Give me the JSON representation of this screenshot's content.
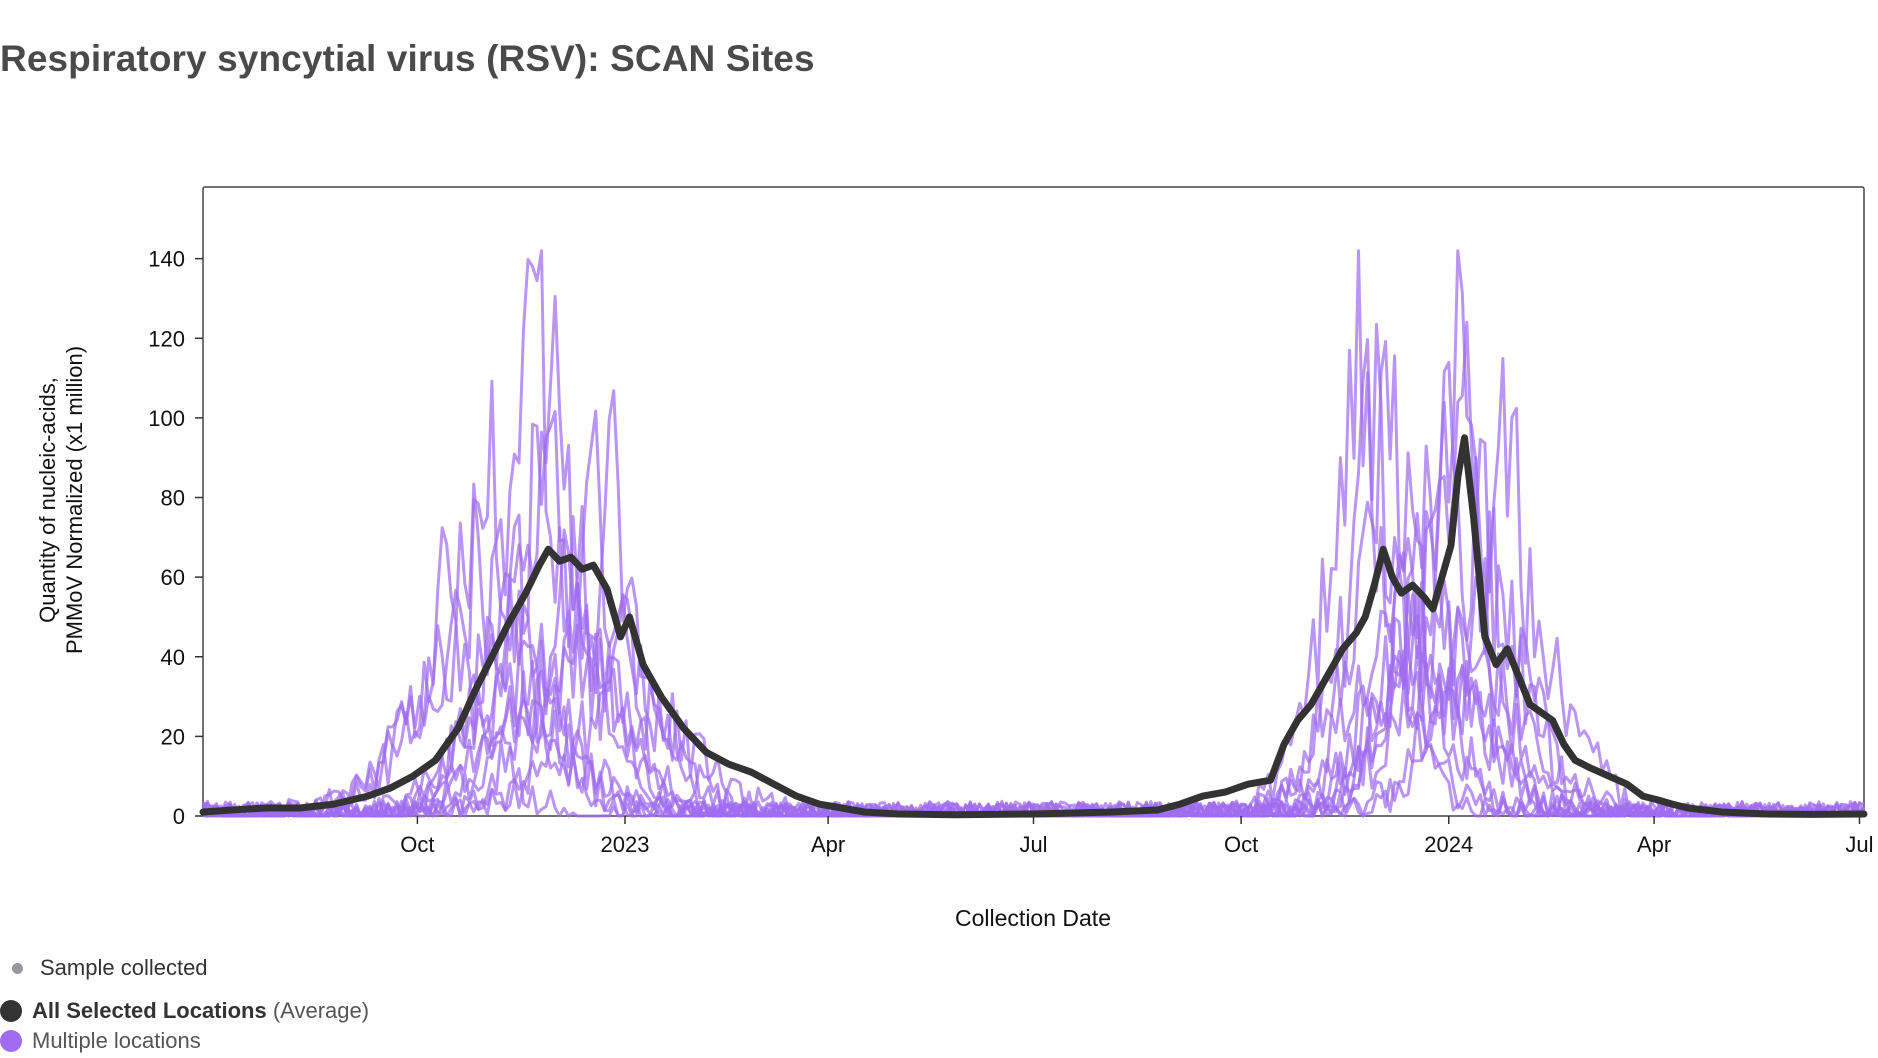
{
  "title": "Respiratory syncytial virus (RSV): SCAN Sites",
  "colors": {
    "average": "#333333",
    "locations": "#a06cf0",
    "sample": "#9a96a6",
    "axis": "#333333"
  },
  "legend": {
    "sample_label": "Sample collected",
    "average_label_bold": "All Selected Locations",
    "average_label_suffix": "(Average)",
    "locations_label": "Multiple locations"
  },
  "chart_data": {
    "type": "line",
    "title": "Respiratory syncytial virus (RSV): SCAN Sites",
    "xlabel": "Collection Date",
    "ylabel": [
      "Quantity of nucleic-acids,",
      "PMMoV Normalized (x1 million)"
    ],
    "x_unit": "days since 2022-07-01",
    "xlim": [
      -3,
      733
    ],
    "ylim": [
      0,
      158
    ],
    "yticks": [
      0,
      20,
      40,
      60,
      80,
      100,
      120,
      140
    ],
    "xticks": [
      {
        "label": "Oct",
        "day": 92
      },
      {
        "label": "2023",
        "day": 184
      },
      {
        "label": "Apr",
        "day": 274
      },
      {
        "label": "Jul",
        "day": 365
      },
      {
        "label": "Oct",
        "day": 457
      },
      {
        "label": "2024",
        "day": 549
      },
      {
        "label": "Apr",
        "day": 640
      },
      {
        "label": "Jul",
        "day": 731
      }
    ],
    "series": [
      {
        "name": "All Selected Locations (Average)",
        "role": "average",
        "points": [
          [
            -3,
            1
          ],
          [
            10,
            1.5
          ],
          [
            25,
            2
          ],
          [
            40,
            2
          ],
          [
            55,
            3
          ],
          [
            70,
            5
          ],
          [
            80,
            7
          ],
          [
            90,
            10
          ],
          [
            100,
            14
          ],
          [
            110,
            22
          ],
          [
            118,
            32
          ],
          [
            125,
            40
          ],
          [
            132,
            48
          ],
          [
            140,
            56
          ],
          [
            146,
            63
          ],
          [
            150,
            67
          ],
          [
            155,
            64
          ],
          [
            160,
            65
          ],
          [
            165,
            62
          ],
          [
            170,
            63
          ],
          [
            176,
            57
          ],
          [
            182,
            45
          ],
          [
            186,
            50
          ],
          [
            192,
            38
          ],
          [
            200,
            30
          ],
          [
            210,
            22
          ],
          [
            220,
            16
          ],
          [
            230,
            13
          ],
          [
            240,
            11
          ],
          [
            250,
            8
          ],
          [
            260,
            5
          ],
          [
            270,
            3
          ],
          [
            280,
            2
          ],
          [
            290,
            1
          ],
          [
            305,
            0.5
          ],
          [
            330,
            0.3
          ],
          [
            365,
            0.5
          ],
          [
            400,
            1
          ],
          [
            420,
            1.5
          ],
          [
            430,
            3
          ],
          [
            440,
            5
          ],
          [
            450,
            6
          ],
          [
            460,
            8
          ],
          [
            470,
            9
          ],
          [
            476,
            18
          ],
          [
            482,
            24
          ],
          [
            488,
            28
          ],
          [
            495,
            35
          ],
          [
            502,
            42
          ],
          [
            508,
            46
          ],
          [
            512,
            50
          ],
          [
            516,
            58
          ],
          [
            520,
            67
          ],
          [
            524,
            60
          ],
          [
            528,
            56
          ],
          [
            533,
            58
          ],
          [
            538,
            55
          ],
          [
            542,
            52
          ],
          [
            546,
            60
          ],
          [
            550,
            68
          ],
          [
            553,
            85
          ],
          [
            556,
            95
          ],
          [
            560,
            75
          ],
          [
            565,
            45
          ],
          [
            570,
            38
          ],
          [
            575,
            42
          ],
          [
            580,
            35
          ],
          [
            585,
            28
          ],
          [
            590,
            26
          ],
          [
            595,
            24
          ],
          [
            600,
            18
          ],
          [
            605,
            14
          ],
          [
            612,
            12
          ],
          [
            620,
            10
          ],
          [
            628,
            8
          ],
          [
            635,
            5
          ],
          [
            642,
            4
          ],
          [
            648,
            3
          ],
          [
            655,
            2
          ],
          [
            670,
            1
          ],
          [
            690,
            0.5
          ],
          [
            710,
            0.4
          ],
          [
            733,
            0.5
          ]
        ]
      },
      {
        "name": "Multiple locations",
        "role": "location",
        "count": 12,
        "peaks": [
          {
            "s1_peak": 140,
            "s1_day": 144,
            "s2_peak": 126,
            "s2_day": 553
          },
          {
            "s1_peak": 128,
            "s1_day": 152,
            "s2_peak": 140,
            "s2_day": 555
          },
          {
            "s1_peak": 118,
            "s1_day": 149,
            "s2_peak": 122,
            "s2_day": 522
          },
          {
            "s1_peak": 95,
            "s1_day": 123,
            "s2_peak": 100,
            "s2_day": 575
          },
          {
            "s1_peak": 90,
            "s1_day": 178,
            "s2_peak": 127,
            "s2_day": 508
          },
          {
            "s1_peak": 84,
            "s1_day": 170,
            "s2_peak": 110,
            "s2_day": 515
          },
          {
            "s1_peak": 72,
            "s1_day": 115,
            "s2_peak": 92,
            "s2_day": 548
          },
          {
            "s1_peak": 65,
            "s1_day": 160,
            "s2_peak": 85,
            "s2_day": 540
          },
          {
            "s1_peak": 60,
            "s1_day": 105,
            "s2_peak": 80,
            "s2_day": 532
          },
          {
            "s1_peak": 55,
            "s1_day": 135,
            "s2_peak": 70,
            "s2_day": 560
          },
          {
            "s1_peak": 48,
            "s1_day": 185,
            "s2_peak": 62,
            "s2_day": 528
          },
          {
            "s1_peak": 40,
            "s1_day": 140,
            "s2_peak": 55,
            "s2_day": 545
          }
        ]
      }
    ]
  }
}
